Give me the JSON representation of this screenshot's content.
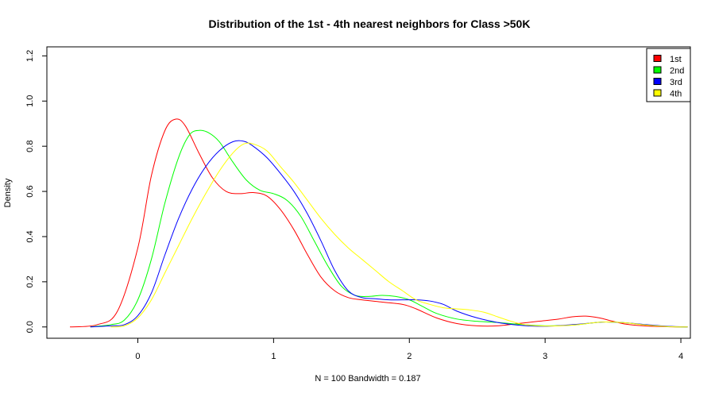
{
  "chart_data": {
    "type": "line",
    "title": "Distribution of the 1st - 4th nearest neighbors for Class >50K",
    "xlabel": "N = 100   Bandwidth = 0.187",
    "ylabel": "Density",
    "xlim": [
      -0.67,
      4.07
    ],
    "ylim": [
      -0.05,
      1.24
    ],
    "x_ticks": [
      "0",
      "1",
      "2",
      "3",
      "4"
    ],
    "y_ticks": [
      "0.0",
      "0.2",
      "0.4",
      "0.6",
      "0.8",
      "1.0",
      "1.2"
    ],
    "legend_position": "top-right",
    "grid": false,
    "series": [
      {
        "name": "1st",
        "color": "#ff0000",
        "points": [
          [
            -0.5,
            0.0
          ],
          [
            -0.3,
            0.01
          ],
          [
            -0.15,
            0.07
          ],
          [
            0.0,
            0.35
          ],
          [
            0.1,
            0.67
          ],
          [
            0.2,
            0.87
          ],
          [
            0.28,
            0.92
          ],
          [
            0.35,
            0.89
          ],
          [
            0.45,
            0.77
          ],
          [
            0.55,
            0.66
          ],
          [
            0.65,
            0.6
          ],
          [
            0.75,
            0.59
          ],
          [
            0.85,
            0.595
          ],
          [
            0.95,
            0.58
          ],
          [
            1.05,
            0.52
          ],
          [
            1.15,
            0.43
          ],
          [
            1.25,
            0.32
          ],
          [
            1.35,
            0.22
          ],
          [
            1.45,
            0.16
          ],
          [
            1.55,
            0.13
          ],
          [
            1.65,
            0.12
          ],
          [
            1.8,
            0.11
          ],
          [
            1.95,
            0.1
          ],
          [
            2.05,
            0.08
          ],
          [
            2.2,
            0.04
          ],
          [
            2.35,
            0.015
          ],
          [
            2.5,
            0.005
          ],
          [
            2.65,
            0.005
          ],
          [
            2.8,
            0.015
          ],
          [
            2.95,
            0.025
          ],
          [
            3.1,
            0.035
          ],
          [
            3.2,
            0.045
          ],
          [
            3.3,
            0.048
          ],
          [
            3.4,
            0.04
          ],
          [
            3.5,
            0.025
          ],
          [
            3.6,
            0.012
          ],
          [
            3.75,
            0.004
          ],
          [
            3.9,
            0.001
          ],
          [
            4.05,
            0.0
          ]
        ]
      },
      {
        "name": "2nd",
        "color": "#00ff00",
        "points": [
          [
            -0.35,
            0.0
          ],
          [
            -0.2,
            0.01
          ],
          [
            -0.1,
            0.03
          ],
          [
            0.0,
            0.12
          ],
          [
            0.1,
            0.3
          ],
          [
            0.2,
            0.55
          ],
          [
            0.3,
            0.75
          ],
          [
            0.38,
            0.85
          ],
          [
            0.45,
            0.87
          ],
          [
            0.52,
            0.86
          ],
          [
            0.6,
            0.82
          ],
          [
            0.7,
            0.73
          ],
          [
            0.8,
            0.65
          ],
          [
            0.9,
            0.605
          ],
          [
            1.0,
            0.59
          ],
          [
            1.1,
            0.56
          ],
          [
            1.2,
            0.49
          ],
          [
            1.3,
            0.38
          ],
          [
            1.4,
            0.27
          ],
          [
            1.5,
            0.18
          ],
          [
            1.6,
            0.14
          ],
          [
            1.7,
            0.135
          ],
          [
            1.8,
            0.14
          ],
          [
            1.9,
            0.135
          ],
          [
            2.0,
            0.12
          ],
          [
            2.1,
            0.09
          ],
          [
            2.2,
            0.06
          ],
          [
            2.35,
            0.035
          ],
          [
            2.5,
            0.025
          ],
          [
            2.65,
            0.02
          ],
          [
            2.8,
            0.012
          ],
          [
            3.0,
            0.005
          ],
          [
            3.2,
            0.008
          ],
          [
            3.35,
            0.018
          ],
          [
            3.45,
            0.022
          ],
          [
            3.6,
            0.018
          ],
          [
            3.75,
            0.008
          ],
          [
            3.9,
            0.002
          ],
          [
            4.05,
            0.0
          ]
        ]
      },
      {
        "name": "3rd",
        "color": "#0000ff",
        "points": [
          [
            -0.35,
            0.0
          ],
          [
            -0.2,
            0.005
          ],
          [
            -0.1,
            0.01
          ],
          [
            0.0,
            0.05
          ],
          [
            0.1,
            0.15
          ],
          [
            0.2,
            0.32
          ],
          [
            0.3,
            0.48
          ],
          [
            0.4,
            0.61
          ],
          [
            0.5,
            0.71
          ],
          [
            0.6,
            0.78
          ],
          [
            0.7,
            0.82
          ],
          [
            0.78,
            0.822
          ],
          [
            0.85,
            0.8
          ],
          [
            0.95,
            0.75
          ],
          [
            1.05,
            0.68
          ],
          [
            1.15,
            0.6
          ],
          [
            1.25,
            0.5
          ],
          [
            1.35,
            0.38
          ],
          [
            1.45,
            0.25
          ],
          [
            1.55,
            0.16
          ],
          [
            1.65,
            0.13
          ],
          [
            1.75,
            0.125
          ],
          [
            1.85,
            0.12
          ],
          [
            1.95,
            0.12
          ],
          [
            2.05,
            0.12
          ],
          [
            2.15,
            0.115
          ],
          [
            2.25,
            0.1
          ],
          [
            2.35,
            0.07
          ],
          [
            2.5,
            0.04
          ],
          [
            2.65,
            0.02
          ],
          [
            2.8,
            0.008
          ],
          [
            3.0,
            0.003
          ],
          [
            3.2,
            0.01
          ],
          [
            3.35,
            0.018
          ],
          [
            3.45,
            0.022
          ],
          [
            3.6,
            0.018
          ],
          [
            3.75,
            0.01
          ],
          [
            3.9,
            0.003
          ],
          [
            4.05,
            0.0
          ]
        ]
      },
      {
        "name": "4th",
        "color": "#ffff00",
        "points": [
          [
            -0.2,
            0.0
          ],
          [
            -0.1,
            0.005
          ],
          [
            0.0,
            0.04
          ],
          [
            0.1,
            0.12
          ],
          [
            0.2,
            0.24
          ],
          [
            0.3,
            0.36
          ],
          [
            0.4,
            0.48
          ],
          [
            0.5,
            0.59
          ],
          [
            0.6,
            0.69
          ],
          [
            0.7,
            0.77
          ],
          [
            0.78,
            0.81
          ],
          [
            0.85,
            0.81
          ],
          [
            0.95,
            0.78
          ],
          [
            1.05,
            0.71
          ],
          [
            1.15,
            0.64
          ],
          [
            1.25,
            0.56
          ],
          [
            1.35,
            0.48
          ],
          [
            1.45,
            0.41
          ],
          [
            1.55,
            0.35
          ],
          [
            1.65,
            0.3
          ],
          [
            1.75,
            0.25
          ],
          [
            1.85,
            0.2
          ],
          [
            1.95,
            0.16
          ],
          [
            2.05,
            0.12
          ],
          [
            2.15,
            0.1
          ],
          [
            2.25,
            0.085
          ],
          [
            2.35,
            0.08
          ],
          [
            2.45,
            0.075
          ],
          [
            2.55,
            0.065
          ],
          [
            2.65,
            0.045
          ],
          [
            2.75,
            0.025
          ],
          [
            2.85,
            0.01
          ],
          [
            3.0,
            0.004
          ],
          [
            3.2,
            0.008
          ],
          [
            3.35,
            0.018
          ],
          [
            3.45,
            0.022
          ],
          [
            3.6,
            0.018
          ],
          [
            3.75,
            0.008
          ],
          [
            3.9,
            0.002
          ],
          [
            4.05,
            0.0
          ]
        ]
      }
    ]
  }
}
